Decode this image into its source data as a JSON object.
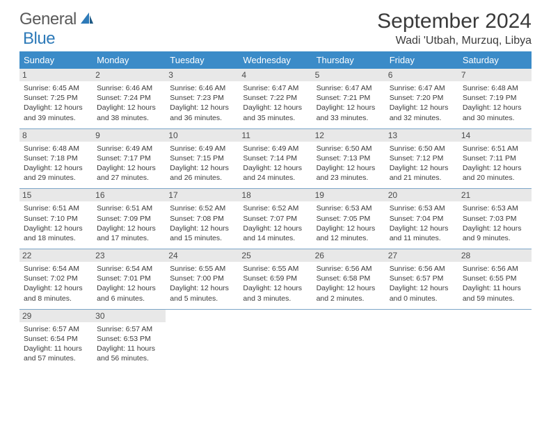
{
  "logo": {
    "text1": "General",
    "text2": "Blue"
  },
  "title": "September 2024",
  "location": "Wadi 'Utbah, Murzuq, Libya",
  "colors": {
    "header_bg": "#3b8bc8",
    "header_text": "#ffffff",
    "daynum_bg": "#e8e8e8",
    "border": "#7ba5c7",
    "logo_gray": "#5a5a5a",
    "logo_blue": "#2e7ab8"
  },
  "weekdays": [
    "Sunday",
    "Monday",
    "Tuesday",
    "Wednesday",
    "Thursday",
    "Friday",
    "Saturday"
  ],
  "weeks": [
    [
      {
        "n": "1",
        "sr": "6:45 AM",
        "ss": "7:25 PM",
        "dh": "12",
        "dm": "39"
      },
      {
        "n": "2",
        "sr": "6:46 AM",
        "ss": "7:24 PM",
        "dh": "12",
        "dm": "38"
      },
      {
        "n": "3",
        "sr": "6:46 AM",
        "ss": "7:23 PM",
        "dh": "12",
        "dm": "36"
      },
      {
        "n": "4",
        "sr": "6:47 AM",
        "ss": "7:22 PM",
        "dh": "12",
        "dm": "35"
      },
      {
        "n": "5",
        "sr": "6:47 AM",
        "ss": "7:21 PM",
        "dh": "12",
        "dm": "33"
      },
      {
        "n": "6",
        "sr": "6:47 AM",
        "ss": "7:20 PM",
        "dh": "12",
        "dm": "32"
      },
      {
        "n": "7",
        "sr": "6:48 AM",
        "ss": "7:19 PM",
        "dh": "12",
        "dm": "30"
      }
    ],
    [
      {
        "n": "8",
        "sr": "6:48 AM",
        "ss": "7:18 PM",
        "dh": "12",
        "dm": "29"
      },
      {
        "n": "9",
        "sr": "6:49 AM",
        "ss": "7:17 PM",
        "dh": "12",
        "dm": "27"
      },
      {
        "n": "10",
        "sr": "6:49 AM",
        "ss": "7:15 PM",
        "dh": "12",
        "dm": "26"
      },
      {
        "n": "11",
        "sr": "6:49 AM",
        "ss": "7:14 PM",
        "dh": "12",
        "dm": "24"
      },
      {
        "n": "12",
        "sr": "6:50 AM",
        "ss": "7:13 PM",
        "dh": "12",
        "dm": "23"
      },
      {
        "n": "13",
        "sr": "6:50 AM",
        "ss": "7:12 PM",
        "dh": "12",
        "dm": "21"
      },
      {
        "n": "14",
        "sr": "6:51 AM",
        "ss": "7:11 PM",
        "dh": "12",
        "dm": "20"
      }
    ],
    [
      {
        "n": "15",
        "sr": "6:51 AM",
        "ss": "7:10 PM",
        "dh": "12",
        "dm": "18"
      },
      {
        "n": "16",
        "sr": "6:51 AM",
        "ss": "7:09 PM",
        "dh": "12",
        "dm": "17"
      },
      {
        "n": "17",
        "sr": "6:52 AM",
        "ss": "7:08 PM",
        "dh": "12",
        "dm": "15"
      },
      {
        "n": "18",
        "sr": "6:52 AM",
        "ss": "7:07 PM",
        "dh": "12",
        "dm": "14"
      },
      {
        "n": "19",
        "sr": "6:53 AM",
        "ss": "7:05 PM",
        "dh": "12",
        "dm": "12"
      },
      {
        "n": "20",
        "sr": "6:53 AM",
        "ss": "7:04 PM",
        "dh": "12",
        "dm": "11"
      },
      {
        "n": "21",
        "sr": "6:53 AM",
        "ss": "7:03 PM",
        "dh": "12",
        "dm": "9"
      }
    ],
    [
      {
        "n": "22",
        "sr": "6:54 AM",
        "ss": "7:02 PM",
        "dh": "12",
        "dm": "8"
      },
      {
        "n": "23",
        "sr": "6:54 AM",
        "ss": "7:01 PM",
        "dh": "12",
        "dm": "6"
      },
      {
        "n": "24",
        "sr": "6:55 AM",
        "ss": "7:00 PM",
        "dh": "12",
        "dm": "5"
      },
      {
        "n": "25",
        "sr": "6:55 AM",
        "ss": "6:59 PM",
        "dh": "12",
        "dm": "3"
      },
      {
        "n": "26",
        "sr": "6:56 AM",
        "ss": "6:58 PM",
        "dh": "12",
        "dm": "2"
      },
      {
        "n": "27",
        "sr": "6:56 AM",
        "ss": "6:57 PM",
        "dh": "12",
        "dm": "0"
      },
      {
        "n": "28",
        "sr": "6:56 AM",
        "ss": "6:55 PM",
        "dh": "11",
        "dm": "59"
      }
    ],
    [
      {
        "n": "29",
        "sr": "6:57 AM",
        "ss": "6:54 PM",
        "dh": "11",
        "dm": "57"
      },
      {
        "n": "30",
        "sr": "6:57 AM",
        "ss": "6:53 PM",
        "dh": "11",
        "dm": "56"
      },
      null,
      null,
      null,
      null,
      null
    ]
  ]
}
